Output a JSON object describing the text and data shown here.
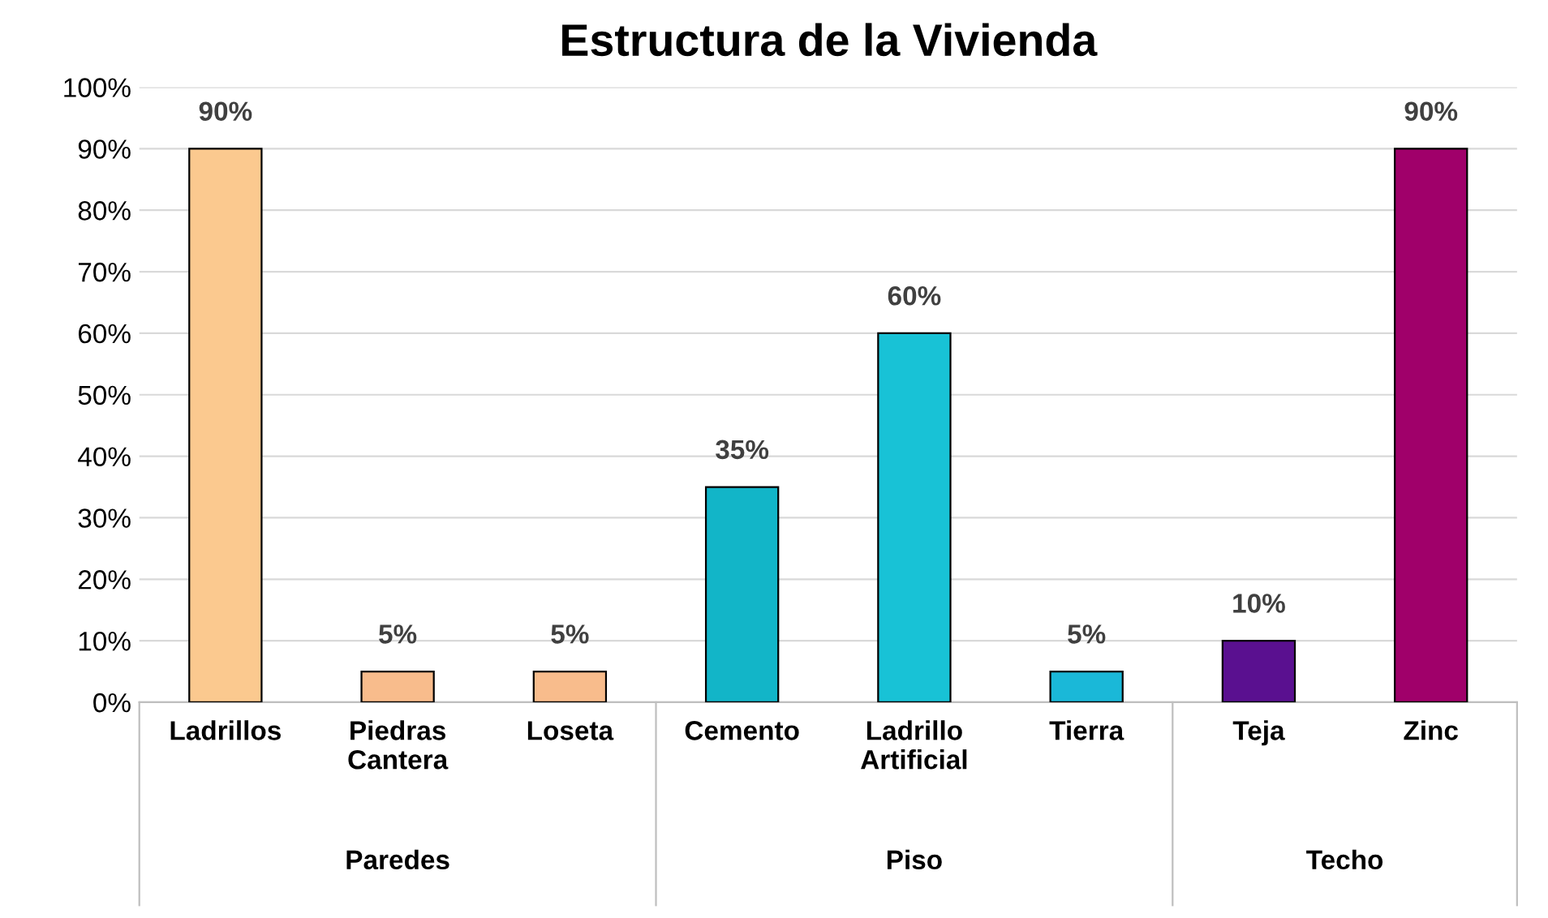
{
  "chart_data": {
    "type": "bar",
    "title": "Estructura de la Vivienda",
    "categories": [
      "Ladrillos",
      "Piedras\nCantera",
      "Loseta",
      "Cemento",
      "Ladrillo\nArtificial",
      "Tierra",
      "Teja",
      "Zinc"
    ],
    "values": [
      90,
      5,
      5,
      35,
      60,
      5,
      10,
      90
    ],
    "colors": [
      "#fbc98f",
      "#f8bc8c",
      "#f8bc8c",
      "#12b5c8",
      "#18c2d6",
      "#1ab8d8",
      "#5a1090",
      "#a0006a"
    ],
    "value_labels": [
      "90%",
      "5%",
      "5%",
      "35%",
      "60%",
      "5%",
      "10%",
      "90%"
    ],
    "ylim": [
      0,
      100
    ],
    "yticks": [
      {
        "value": 0,
        "label": "0%"
      },
      {
        "value": 10,
        "label": "10%"
      },
      {
        "value": 20,
        "label": "20%"
      },
      {
        "value": 30,
        "label": "30%"
      },
      {
        "value": 40,
        "label": "40%"
      },
      {
        "value": 50,
        "label": "50%"
      },
      {
        "value": 60,
        "label": "60%"
      },
      {
        "value": 70,
        "label": "70%"
      },
      {
        "value": 80,
        "label": "80%"
      },
      {
        "value": 90,
        "label": "90%"
      },
      {
        "value": 100,
        "label": "100%"
      }
    ],
    "grid": "y",
    "annotations": [
      "Paredes",
      "Piso",
      "Techo"
    ]
  }
}
